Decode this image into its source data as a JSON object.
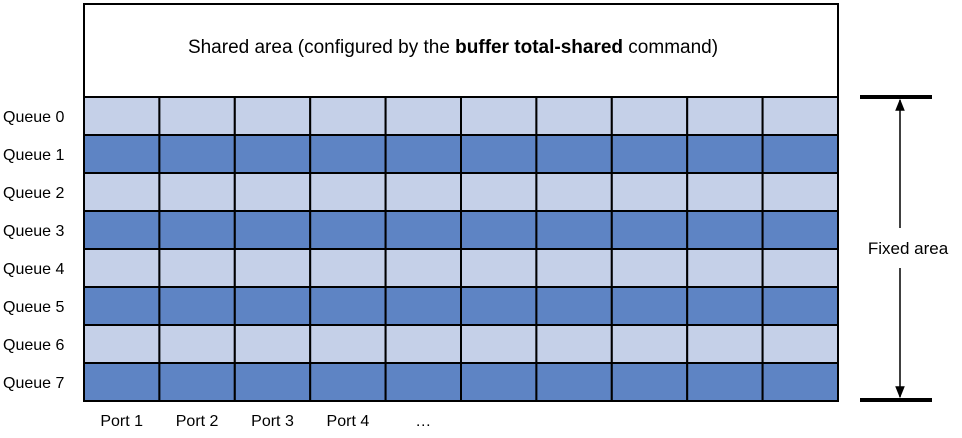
{
  "shared_area": {
    "text_before": "Shared area (configured by the ",
    "command": "buffer total-shared",
    "text_after": " command)"
  },
  "queues": [
    "Queue 0",
    "Queue 1",
    "Queue 2",
    "Queue 3",
    "Queue 4",
    "Queue 5",
    "Queue 6",
    "Queue 7"
  ],
  "ports": [
    "Port 1",
    "Port 2",
    "Port 3",
    "Port 4",
    "…"
  ],
  "port_columns": 10,
  "fixed_area_label": "Fixed area",
  "colors": {
    "light_row": "#c5d0e8",
    "dark_row": "#5e84c4",
    "border": "#000000"
  }
}
